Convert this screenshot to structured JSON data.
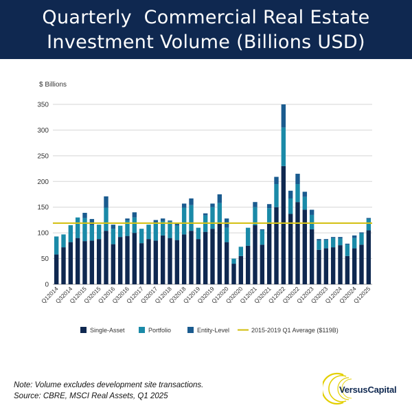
{
  "header": {
    "title_line1": "Quarterly  Commercial Real Estate",
    "title_line2": "Investment Volume (Billions USD)"
  },
  "footer": {
    "note": "Note: Volume excludes development site transactions.",
    "source": "Source: CBRE, MSCI Real Assets, Q1 2025"
  },
  "logo": {
    "text": "VersusCapital"
  },
  "colors": {
    "banner": "#0f2850",
    "single_asset": "#0f2850",
    "portfolio": "#1a8aa8",
    "entity_level": "#1a5b8f",
    "average_line": "#d4c21a",
    "grid": "#d5d5d5"
  },
  "chart_data": {
    "type": "bar",
    "stacked": true,
    "title": "Quarterly  Commercial Real Estate Investment Volume (Billions USD)",
    "ylabel": "$ Billions",
    "xlabel": "",
    "ylim": [
      0,
      350
    ],
    "yticks": [
      0,
      50,
      100,
      150,
      200,
      250,
      300,
      350
    ],
    "grid": true,
    "legend_position": "bottom",
    "categories": [
      "Q1 2014",
      "Q2 2014",
      "Q3 2014",
      "Q4 2014",
      "Q1 2015",
      "Q2 2015",
      "Q3 2015",
      "Q4 2015",
      "Q1 2016",
      "Q2 2016",
      "Q3 2016",
      "Q4 2016",
      "Q1 2017",
      "Q2 2017",
      "Q3 2017",
      "Q4 2017",
      "Q1 2018",
      "Q2 2018",
      "Q3 2018",
      "Q4 2018",
      "Q1 2019",
      "Q2 2019",
      "Q3 2019",
      "Q4 2019",
      "Q1 2020",
      "Q2 2020",
      "Q3 2020",
      "Q4 2020",
      "Q1 2021",
      "Q2 2021",
      "Q3 2021",
      "Q4 2021",
      "Q1 2022",
      "Q2 2022",
      "Q3 2022",
      "Q4 2022",
      "Q1 2023",
      "Q2 2023",
      "Q3 2023",
      "Q4 2023",
      "Q1 2024",
      "Q2 2024",
      "Q3 2024",
      "Q4 2024",
      "Q1 2025"
    ],
    "x_tick_labels": [
      "Q1 2014",
      "Q3 2014",
      "Q1 2015",
      "Q3 2015",
      "Q1 2016",
      "Q3 2016",
      "Q1 2017",
      "Q3 2017",
      "Q1 2018",
      "Q3 2018",
      "Q1 2019",
      "Q3 2019",
      "Q1 2020",
      "Q3 2020",
      "Q1 2021",
      "Q3 2021",
      "Q1 2022",
      "Q3 2022",
      "Q1 2023",
      "Q3 2023",
      "Q1 2024",
      "Q3 2024",
      "Q1 2025"
    ],
    "series": [
      {
        "name": "Single-Asset",
        "values": [
          58,
          72,
          82,
          90,
          84,
          85,
          88,
          104,
          78,
          92,
          94,
          100,
          80,
          88,
          85,
          95,
          90,
          86,
          97,
          104,
          88,
          102,
          108,
          118,
          82,
          40,
          55,
          75,
          115,
          77,
          118,
          150,
          230,
          137,
          160,
          145,
          107,
          67,
          70,
          72,
          76,
          55,
          70,
          77,
          105
        ]
      },
      {
        "name": "Portfolio",
        "values": [
          35,
          25,
          33,
          40,
          45,
          30,
          28,
          45,
          30,
          22,
          30,
          30,
          28,
          28,
          34,
          28,
          32,
          28,
          52,
          50,
          22,
          32,
          42,
          40,
          28,
          10,
          18,
          35,
          35,
          28,
          30,
          45,
          75,
          30,
          35,
          25,
          28,
          18,
          16,
          18,
          13,
          22,
          20,
          22,
          22
        ]
      },
      {
        "name": "Entity-Level",
        "values": [
          0,
          0,
          0,
          0,
          10,
          12,
          0,
          22,
          8,
          0,
          4,
          10,
          0,
          0,
          6,
          5,
          2,
          5,
          8,
          13,
          0,
          4,
          7,
          17,
          18,
          0,
          0,
          0,
          10,
          2,
          8,
          14,
          45,
          15,
          20,
          10,
          10,
          3,
          2,
          2,
          3,
          2,
          5,
          2,
          2
        ]
      }
    ],
    "reference_line": {
      "name": "2015-2019 Q1 Average ($119B)",
      "value": 119
    },
    "legend": [
      "Single-Asset",
      "Portfolio",
      "Entity-Level",
      "2015-2019 Q1 Average ($119B)"
    ]
  }
}
